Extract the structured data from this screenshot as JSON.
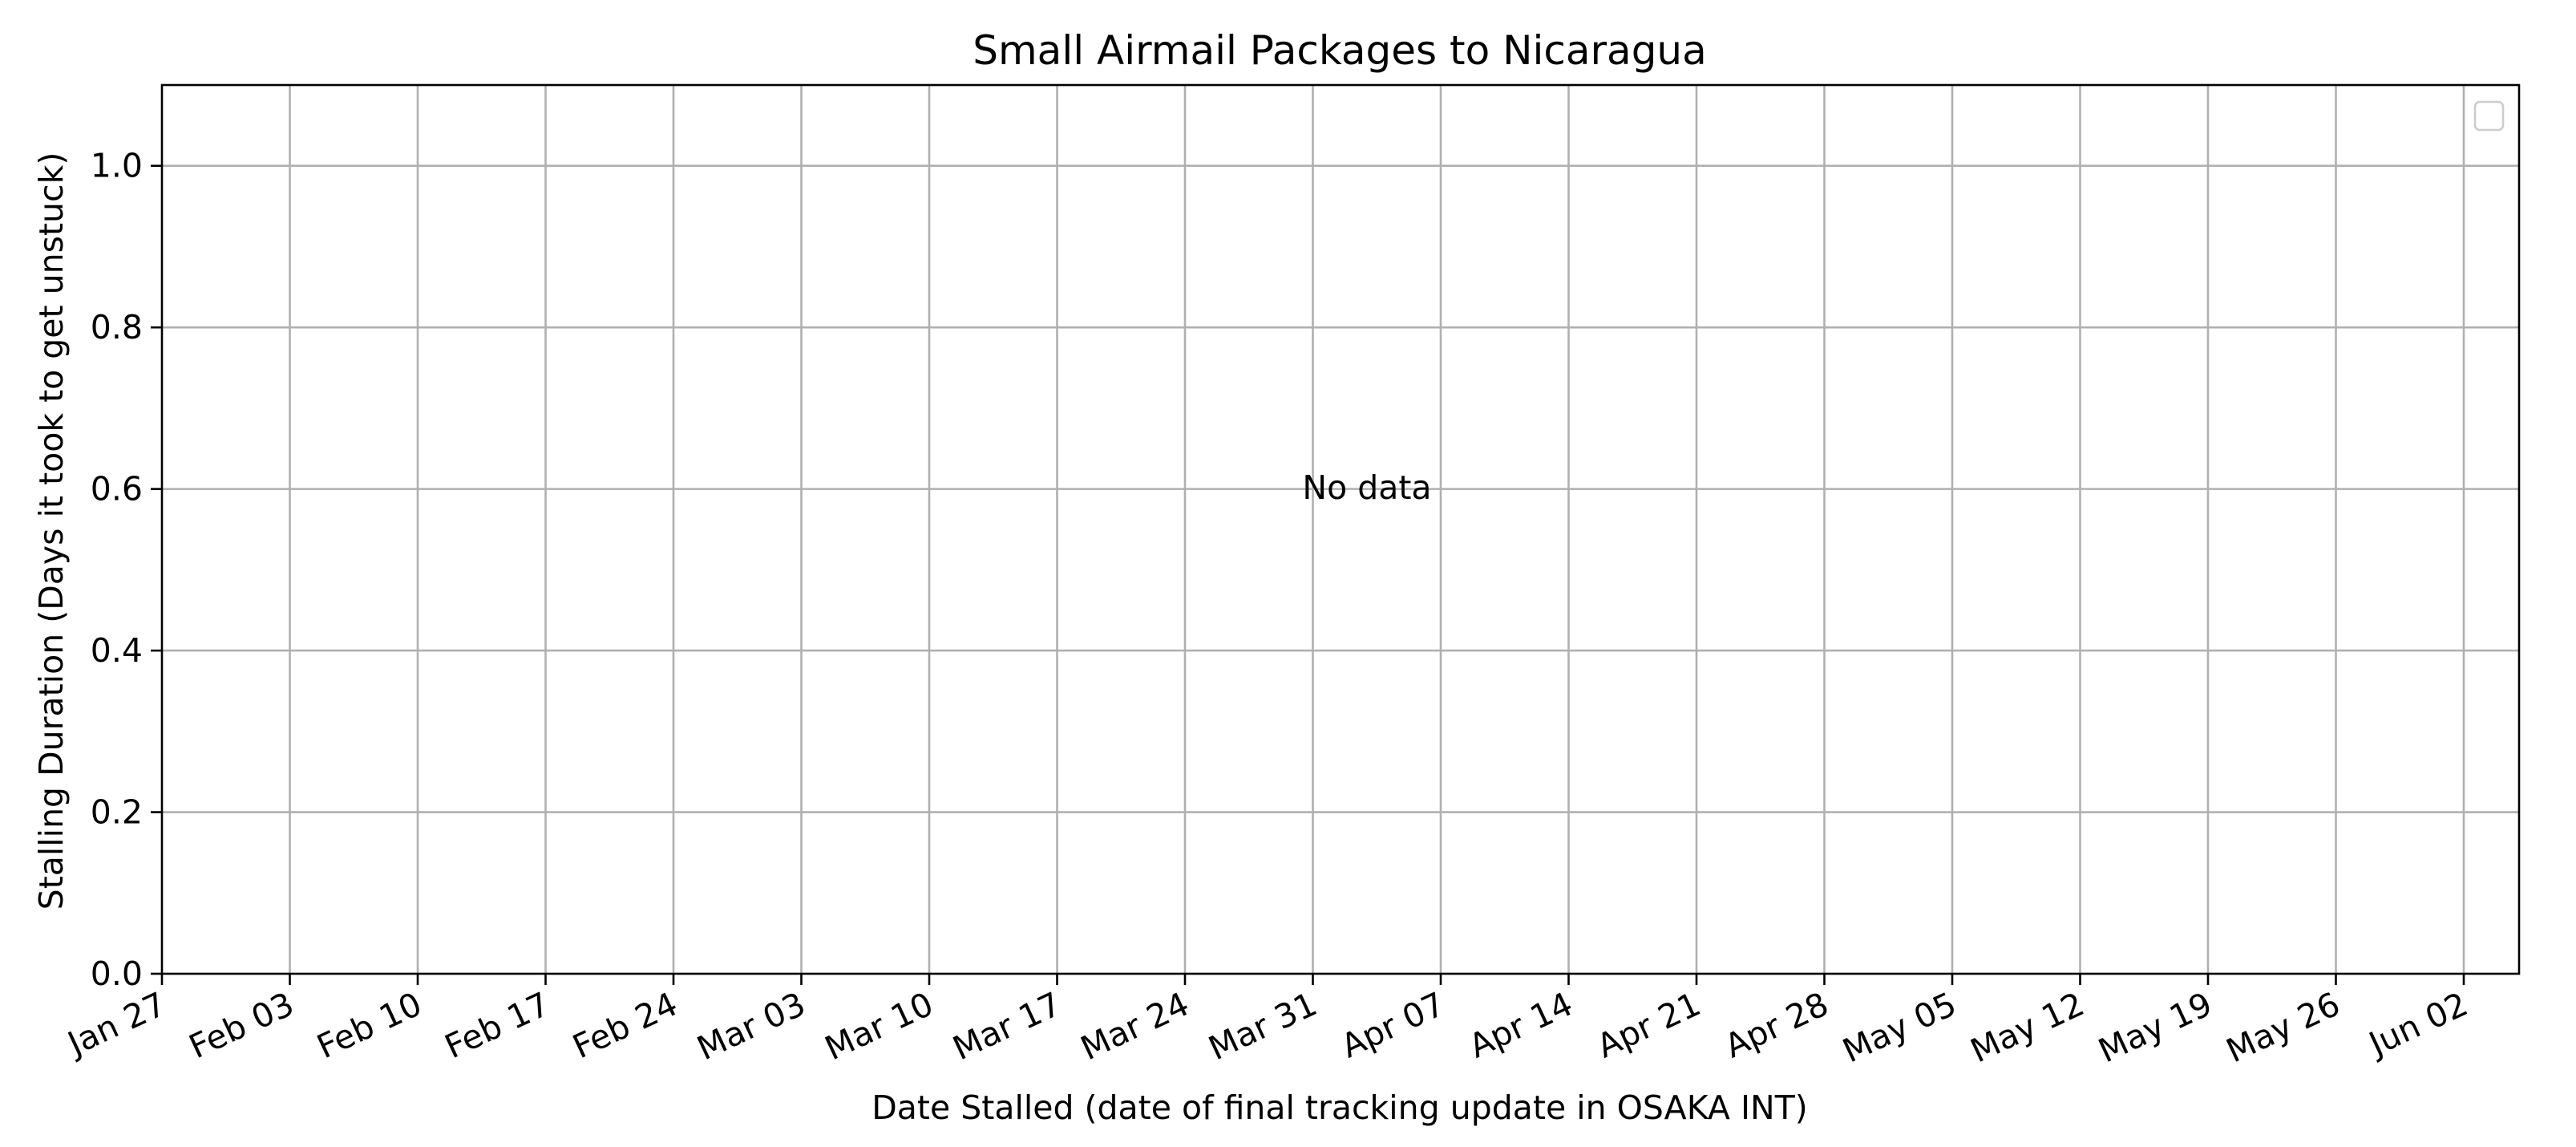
{
  "chart_data": {
    "type": "line",
    "title": "Small Airmail Packages to Nicaragua",
    "xlabel": "Date Stalled (date of final tracking update in OSAKA INT)",
    "ylabel": "Stalling Duration (Days it took to get unstuck)",
    "x_ticks": [
      "Jan 27",
      "Feb 03",
      "Feb 10",
      "Feb 17",
      "Feb 24",
      "Mar 03",
      "Mar 10",
      "Mar 17",
      "Mar 24",
      "Mar 31",
      "Apr 07",
      "Apr 14",
      "Apr 21",
      "Apr 28",
      "May 05",
      "May 12",
      "May 19",
      "May 26",
      "Jun 02"
    ],
    "y_ticks": [
      "0.0",
      "0.2",
      "0.4",
      "0.6",
      "0.8",
      "1.0"
    ],
    "ylim": [
      0,
      1.1
    ],
    "grid": true,
    "legend_position": "top-right",
    "series": [],
    "annotation": "No data"
  }
}
